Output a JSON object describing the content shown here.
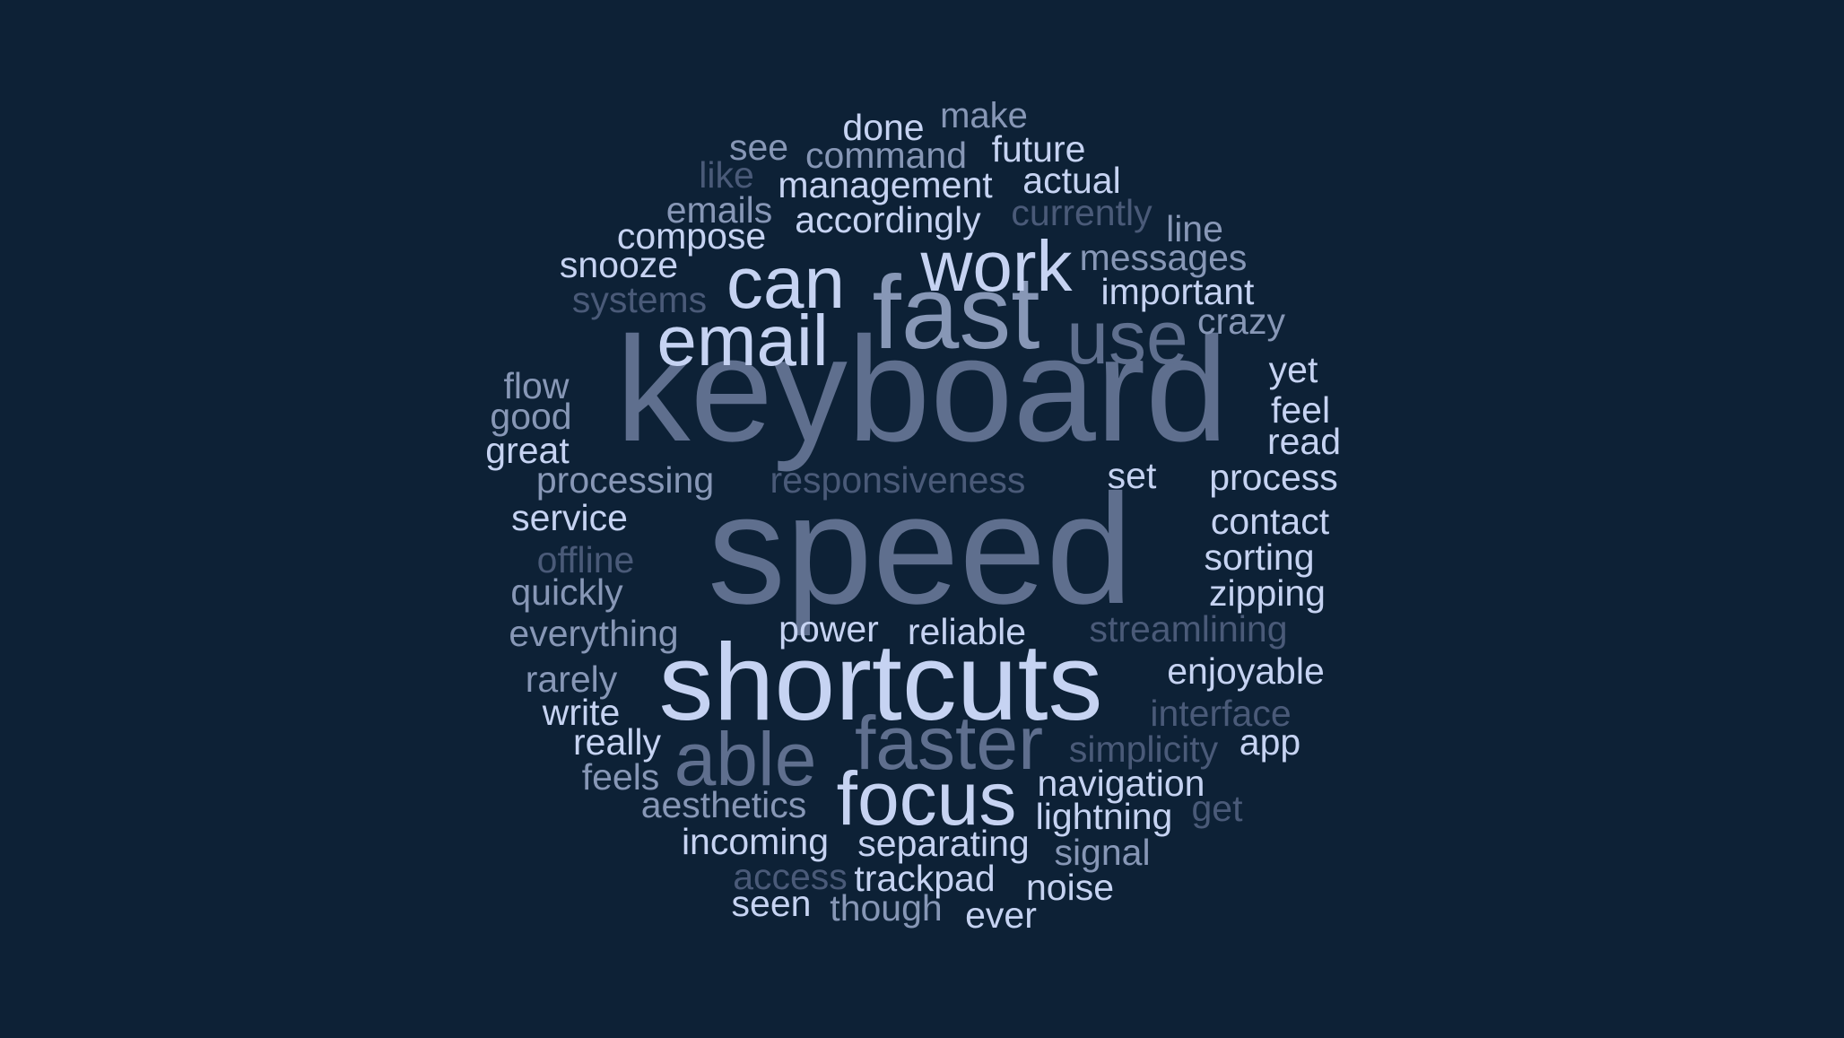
{
  "colors": {
    "background": "#0d2136",
    "light": "#c6d3f2",
    "mid": "#8797b6",
    "dim": "#5f6f8e",
    "faint": "#4a5a78"
  },
  "words": [
    {
      "text": "keyboard",
      "tone": "dim"
    },
    {
      "text": "speed",
      "tone": "dim"
    },
    {
      "text": "shortcuts",
      "tone": "light"
    },
    {
      "text": "fast",
      "tone": "mid"
    },
    {
      "text": "email",
      "tone": "light"
    },
    {
      "text": "can",
      "tone": "light"
    },
    {
      "text": "work",
      "tone": "light"
    },
    {
      "text": "use",
      "tone": "dim"
    },
    {
      "text": "faster",
      "tone": "dim"
    },
    {
      "text": "able",
      "tone": "dim"
    },
    {
      "text": "focus",
      "tone": "light"
    },
    {
      "text": "done",
      "tone": "light"
    },
    {
      "text": "make",
      "tone": "mid"
    },
    {
      "text": "see",
      "tone": "mid"
    },
    {
      "text": "command",
      "tone": "mid"
    },
    {
      "text": "future",
      "tone": "light"
    },
    {
      "text": "like",
      "tone": "faint"
    },
    {
      "text": "management",
      "tone": "light"
    },
    {
      "text": "actual",
      "tone": "light"
    },
    {
      "text": "emails",
      "tone": "mid"
    },
    {
      "text": "accordingly",
      "tone": "light"
    },
    {
      "text": "currently",
      "tone": "faint"
    },
    {
      "text": "line",
      "tone": "mid"
    },
    {
      "text": "compose",
      "tone": "light"
    },
    {
      "text": "messages",
      "tone": "mid"
    },
    {
      "text": "snooze",
      "tone": "light"
    },
    {
      "text": "important",
      "tone": "light"
    },
    {
      "text": "systems",
      "tone": "faint"
    },
    {
      "text": "crazy",
      "tone": "mid"
    },
    {
      "text": "yet",
      "tone": "light"
    },
    {
      "text": "flow",
      "tone": "mid"
    },
    {
      "text": "good",
      "tone": "mid"
    },
    {
      "text": "feel",
      "tone": "light"
    },
    {
      "text": "great",
      "tone": "light"
    },
    {
      "text": "read",
      "tone": "light"
    },
    {
      "text": "processing",
      "tone": "mid"
    },
    {
      "text": "responsiveness",
      "tone": "faint"
    },
    {
      "text": "set",
      "tone": "light"
    },
    {
      "text": "process",
      "tone": "light"
    },
    {
      "text": "service",
      "tone": "light"
    },
    {
      "text": "contact",
      "tone": "light"
    },
    {
      "text": "offline",
      "tone": "faint"
    },
    {
      "text": "sorting",
      "tone": "light"
    },
    {
      "text": "quickly",
      "tone": "mid"
    },
    {
      "text": "zipping",
      "tone": "light"
    },
    {
      "text": "everything",
      "tone": "mid"
    },
    {
      "text": "power",
      "tone": "light"
    },
    {
      "text": "reliable",
      "tone": "light"
    },
    {
      "text": "streamlining",
      "tone": "faint"
    },
    {
      "text": "rarely",
      "tone": "mid"
    },
    {
      "text": "enjoyable",
      "tone": "light"
    },
    {
      "text": "write",
      "tone": "light"
    },
    {
      "text": "interface",
      "tone": "faint"
    },
    {
      "text": "really",
      "tone": "light"
    },
    {
      "text": "simplicity",
      "tone": "faint"
    },
    {
      "text": "app",
      "tone": "light"
    },
    {
      "text": "feels",
      "tone": "mid"
    },
    {
      "text": "navigation",
      "tone": "light"
    },
    {
      "text": "aesthetics",
      "tone": "mid"
    },
    {
      "text": "lightning",
      "tone": "light"
    },
    {
      "text": "get",
      "tone": "faint"
    },
    {
      "text": "incoming",
      "tone": "light"
    },
    {
      "text": "separating",
      "tone": "light"
    },
    {
      "text": "signal",
      "tone": "mid"
    },
    {
      "text": "access",
      "tone": "faint"
    },
    {
      "text": "trackpad",
      "tone": "light"
    },
    {
      "text": "noise",
      "tone": "light"
    },
    {
      "text": "seen",
      "tone": "light"
    },
    {
      "text": "though",
      "tone": "mid"
    },
    {
      "text": "ever",
      "tone": "light"
    }
  ]
}
